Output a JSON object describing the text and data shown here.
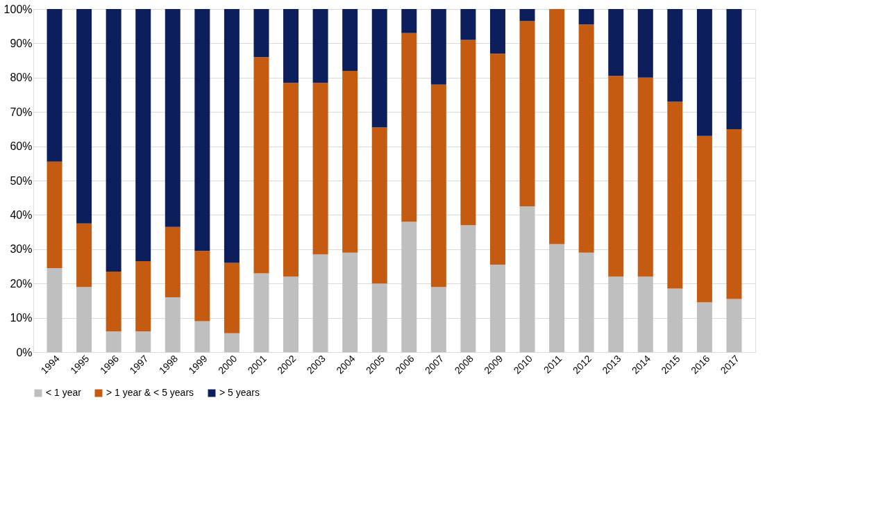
{
  "chart_data": {
    "type": "bar",
    "stacked": true,
    "categories": [
      "1994",
      "1995",
      "1996",
      "1997",
      "1998",
      "1999",
      "2000",
      "2001",
      "2002",
      "2003",
      "2004",
      "2005",
      "2006",
      "2007",
      "2008",
      "2009",
      "2010",
      "2011",
      "2012",
      "2013",
      "2014",
      "2015",
      "2016",
      "2017"
    ],
    "series": [
      {
        "name": "< 1 year",
        "color": "#bfbfbf",
        "values": [
          24.5,
          19,
          6,
          6,
          16,
          9,
          5.5,
          23,
          22,
          28.5,
          29,
          20,
          38,
          19,
          37,
          25.5,
          42.5,
          31.5,
          29,
          22,
          22,
          18.5,
          14.5,
          15.5
        ]
      },
      {
        "name": "> 1 year & < 5 years",
        "color": "#c55a11",
        "values": [
          31,
          18.5,
          17.5,
          20.5,
          20.5,
          20.5,
          20.5,
          63,
          56.5,
          50,
          53,
          45.5,
          55,
          59,
          54,
          61.5,
          54,
          68.5,
          66.5,
          58.5,
          58,
          54.5,
          48.5,
          49.5
        ]
      },
      {
        "name": "> 5 years",
        "color": "#0c1f5c",
        "values": [
          44.5,
          62.5,
          76.5,
          73.5,
          63.5,
          70.5,
          74,
          14,
          21.5,
          21.5,
          18,
          34.5,
          7,
          22,
          9,
          13,
          3.5,
          0,
          4.5,
          19.5,
          20,
          27,
          37,
          35
        ]
      }
    ],
    "ylim": [
      0,
      100
    ],
    "yticks": [
      {
        "value": 0,
        "label": "0%"
      },
      {
        "value": 10,
        "label": "10%"
      },
      {
        "value": 20,
        "label": "20%"
      },
      {
        "value": 30,
        "label": "30%"
      },
      {
        "value": 40,
        "label": "40%"
      },
      {
        "value": 50,
        "label": "50%"
      },
      {
        "value": 60,
        "label": "60%"
      },
      {
        "value": 70,
        "label": "70%"
      },
      {
        "value": 80,
        "label": "80%"
      },
      {
        "value": 90,
        "label": "90%"
      },
      {
        "value": 100,
        "label": "100%"
      }
    ],
    "grid": "y",
    "legend": "bottom"
  }
}
